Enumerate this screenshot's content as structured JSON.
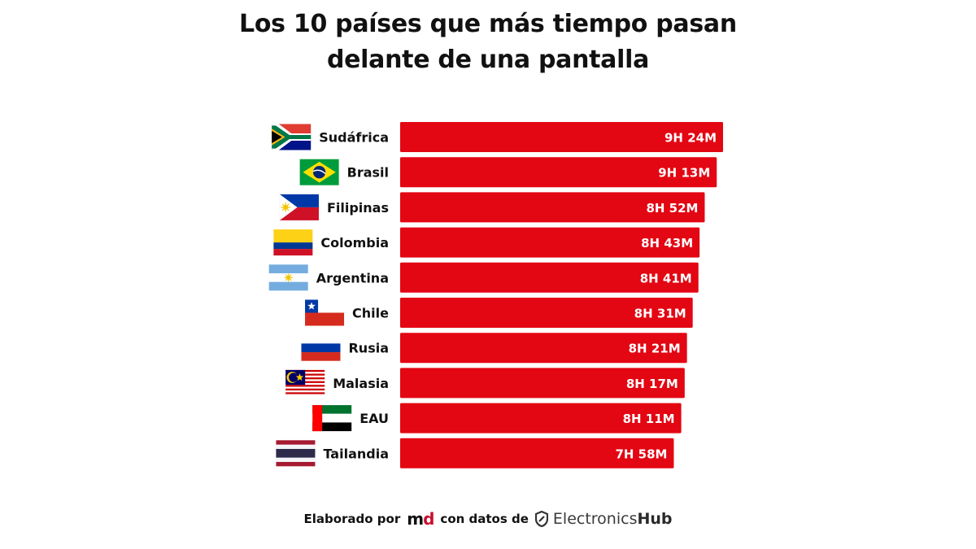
{
  "title_lines": [
    "Los 10 países que más tiempo pasan",
    "delante de una pantalla"
  ],
  "footer": {
    "prefix": "Elaborado por",
    "md_logo": {
      "m": "m",
      "d": "d"
    },
    "middle": "con datos de",
    "source_logo": {
      "part1": "Electronics",
      "part2": "Hub"
    }
  },
  "colors": {
    "bar": "#e30613",
    "label_text": "#111111",
    "value_text": "#ffffff"
  },
  "chart_data": {
    "type": "bar",
    "orientation": "horizontal",
    "title": "Los 10 países que más tiempo pasan delante de una pantalla",
    "categories": [
      "Sudáfrica",
      "Brasil",
      "Filipinas",
      "Colombia",
      "Argentina",
      "Chile",
      "Rusia",
      "Malasia",
      "EAU",
      "Tailandia"
    ],
    "values": [
      564,
      553,
      532,
      523,
      521,
      511,
      501,
      497,
      491,
      478
    ],
    "value_labels": [
      "9H 24M",
      "9H 13M",
      "8H 52M",
      "8H 43M",
      "8H 41M",
      "8H 31M",
      "8H 21M",
      "8H 17M",
      "8H 11M",
      "7H 58M"
    ],
    "flags": [
      "south-africa-flag",
      "brazil-flag",
      "philippines-flag",
      "colombia-flag",
      "argentina-flag",
      "chile-flag",
      "russia-flag",
      "malaysia-flag",
      "uae-flag",
      "thailand-flag"
    ],
    "xlabel": "",
    "ylabel": "",
    "grid": false,
    "legend": "none"
  }
}
